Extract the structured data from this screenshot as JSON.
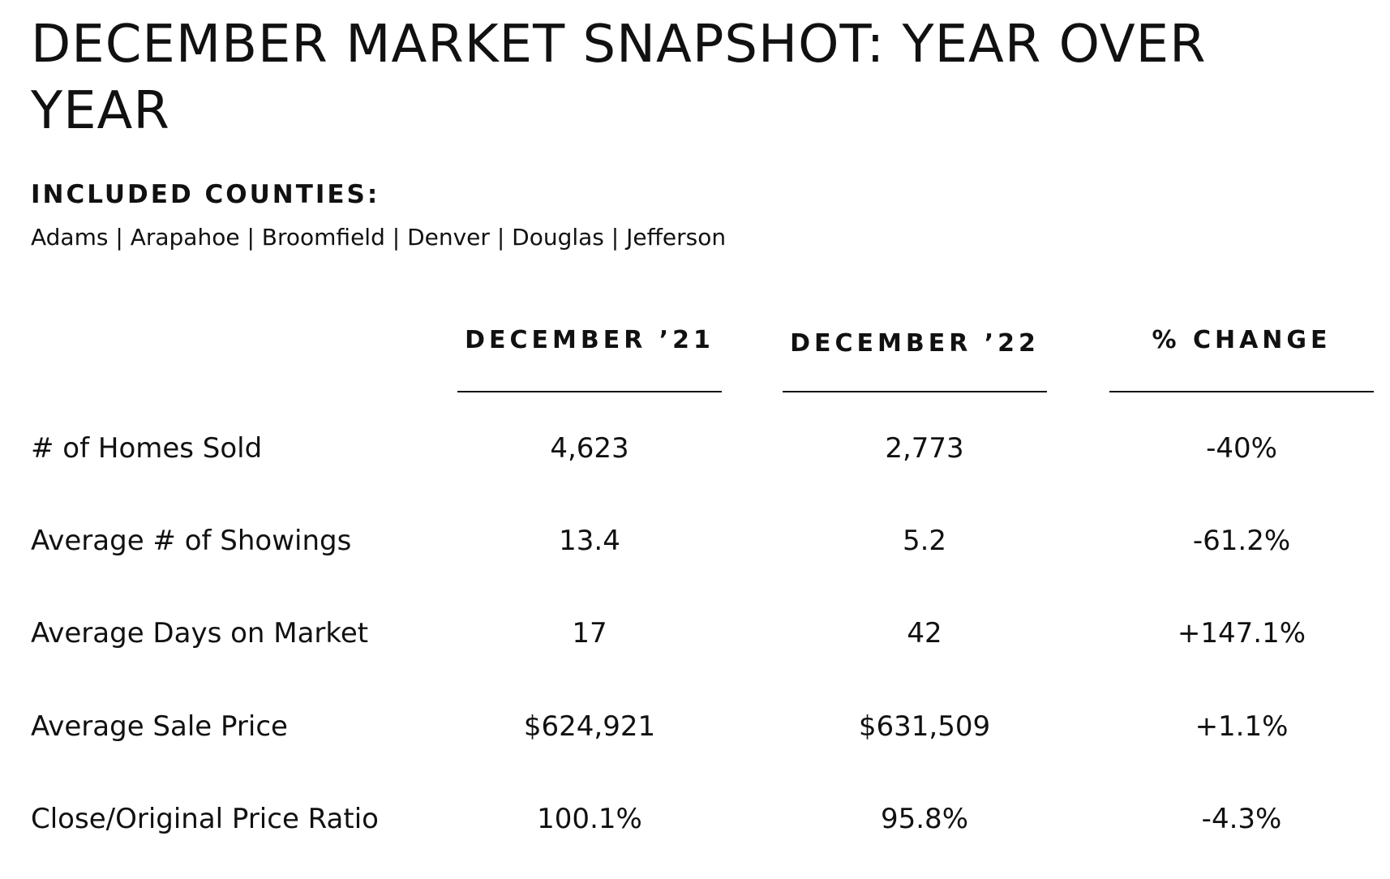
{
  "title": "DECEMBER MARKET SNAPSHOT: YEAR OVER YEAR",
  "counties": {
    "heading": "INCLUDED COUNTIES:",
    "list": "Adams | Arapahoe | Broomfield | Denver | Douglas | Jefferson"
  },
  "table": {
    "columns": [
      "DECEMBER ’21",
      "DECEMBER ’22",
      "% CHANGE"
    ],
    "rows": [
      {
        "label": "# of Homes Sold",
        "dec21": "4,623",
        "dec22": "2,773",
        "change": "-40%"
      },
      {
        "label": "Average # of Showings",
        "dec21": "13.4",
        "dec22": "5.2",
        "change": "-61.2%"
      },
      {
        "label": "Average Days on Market",
        "dec21": "17",
        "dec22": "42",
        "change": "+147.1%"
      },
      {
        "label": "Average Sale Price",
        "dec21": "$624,921",
        "dec22": "$631,509",
        "change": "+1.1%"
      },
      {
        "label": "Close/Original Price Ratio",
        "dec21": "100.1%",
        "dec22": "95.8%",
        "change": "-4.3%"
      }
    ]
  }
}
